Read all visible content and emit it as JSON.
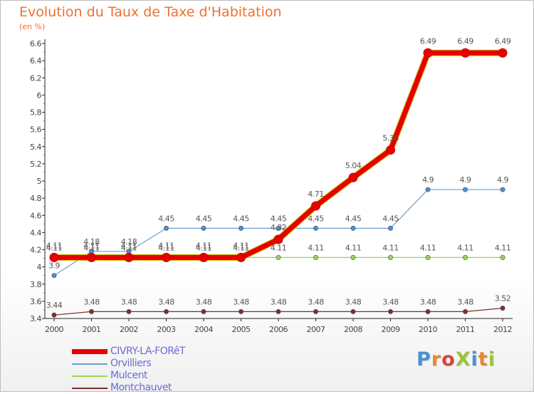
{
  "title": "Evolution du Taux de Taxe d'Habitation",
  "unit": "(en %)",
  "logo": {
    "text": "ProXiti",
    "colors": [
      "#4a90d9",
      "#e8862a",
      "#d9453a",
      "#9bc43a",
      "#4a90d9",
      "#e8862a",
      "#9bc43a"
    ]
  },
  "chart_data": {
    "type": "line",
    "x": [
      "2000",
      "2001",
      "2002",
      "2003",
      "2004",
      "2005",
      "2006",
      "2007",
      "2008",
      "2009",
      "2010",
      "2011",
      "2012"
    ],
    "ylim": [
      3.4,
      6.6
    ],
    "yticks": [
      "3.4",
      "3.6",
      "3.8",
      "4",
      "4.2",
      "4.4",
      "4.6",
      "4.8",
      "5",
      "5.2",
      "5.4",
      "5.6",
      "5.8",
      "6",
      "6.2",
      "6.4",
      "6.6"
    ],
    "grid": false,
    "series": [
      {
        "name": "CIVRY-LA-FORêT",
        "color": "#e80000",
        "width": 7,
        "values": [
          4.11,
          4.11,
          4.11,
          4.11,
          4.11,
          4.11,
          4.32,
          4.71,
          5.04,
          5.36,
          6.49,
          6.49,
          6.49
        ],
        "labels": [
          "4.11",
          "4.11",
          "4.11",
          "4.11",
          "4.11",
          "4.11",
          "4.32",
          "4.71",
          "5.04",
          "5.36",
          "6.49",
          "6.49",
          "6.49"
        ]
      },
      {
        "name": "Orvilliers",
        "color": "#6b9fd4",
        "width": 1.2,
        "values": [
          3.9,
          4.18,
          4.18,
          4.45,
          4.45,
          4.45,
          4.45,
          4.45,
          4.45,
          4.45,
          4.9,
          4.9,
          4.9
        ],
        "labels": [
          "3.9",
          "4.18",
          "4.18",
          "4.45",
          "4.45",
          "4.45",
          "4.45",
          "4.45",
          "4.45",
          "4.45",
          "4.9",
          "4.9",
          "4.9"
        ]
      },
      {
        "name": "Mulcent",
        "color": "#9ad44a",
        "width": 1.2,
        "values": [
          4.11,
          4.11,
          4.11,
          4.11,
          4.11,
          4.11,
          4.11,
          4.11,
          4.11,
          4.11,
          4.11,
          4.11,
          4.11
        ],
        "labels": [
          "4.11",
          "4.11",
          "4.11",
          "4.11",
          "4.11",
          "4.11",
          "4.11",
          "4.11",
          "4.11",
          "4.11",
          "4.11",
          "4.11",
          "4.11"
        ]
      },
      {
        "name": "Montchauvet",
        "color": "#7a3030",
        "width": 1.2,
        "values": [
          3.44,
          3.48,
          3.48,
          3.48,
          3.48,
          3.48,
          3.48,
          3.48,
          3.48,
          3.48,
          3.48,
          3.48,
          3.52
        ],
        "labels": [
          "3.44",
          "3.48",
          "3.48",
          "3.48",
          "3.48",
          "3.48",
          "3.48",
          "3.48",
          "3.48",
          "3.48",
          "3.48",
          "3.48",
          "3.52"
        ]
      }
    ]
  }
}
